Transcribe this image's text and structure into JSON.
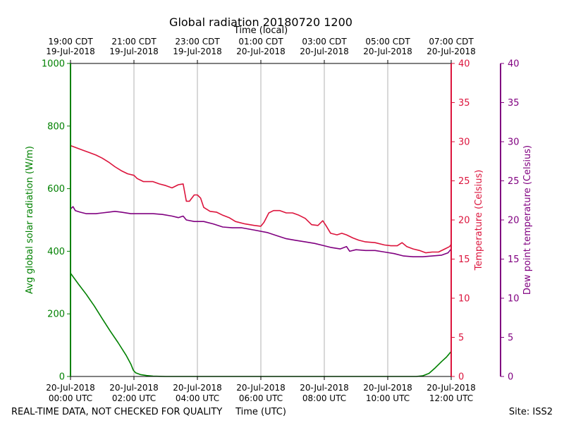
{
  "chart_data": {
    "type": "line",
    "title": "Global radiation 20180720 1200",
    "top_xlabel": "Time (local)",
    "xlabel": "Time (UTC)",
    "footer_left": "REAL-TIME DATA, NOT CHECKED FOR QUALITY",
    "footer_right": "Site: ISS2",
    "x_hours_range": [
      0,
      12
    ],
    "bottom_ticks": [
      {
        "hour": 0,
        "line1": "20-Jul-2018",
        "line2": "00:00 UTC"
      },
      {
        "hour": 2,
        "line1": "20-Jul-2018",
        "line2": "02:00 UTC"
      },
      {
        "hour": 4,
        "line1": "20-Jul-2018",
        "line2": "04:00 UTC"
      },
      {
        "hour": 6,
        "line1": "20-Jul-2018",
        "line2": "06:00 UTC"
      },
      {
        "hour": 8,
        "line1": "20-Jul-2018",
        "line2": "08:00 UTC"
      },
      {
        "hour": 10,
        "line1": "20-Jul-2018",
        "line2": "10:00 UTC"
      },
      {
        "hour": 12,
        "line1": "20-Jul-2018",
        "line2": "12:00 UTC"
      }
    ],
    "top_ticks": [
      {
        "hour": 0,
        "line1": "19:00 CDT",
        "line2": "19-Jul-2018"
      },
      {
        "hour": 2,
        "line1": "21:00 CDT",
        "line2": "19-Jul-2018"
      },
      {
        "hour": 4,
        "line1": "23:00 CDT",
        "line2": "19-Jul-2018"
      },
      {
        "hour": 6,
        "line1": "01:00 CDT",
        "line2": "20-Jul-2018"
      },
      {
        "hour": 8,
        "line1": "03:00 CDT",
        "line2": "20-Jul-2018"
      },
      {
        "hour": 10,
        "line1": "05:00 CDT",
        "line2": "20-Jul-2018"
      },
      {
        "hour": 12,
        "line1": "07:00 CDT",
        "line2": "20-Jul-2018"
      }
    ],
    "grid": "vertical",
    "axes": {
      "left": {
        "label": "Avg global solar radiation (W/m)",
        "range": [
          0,
          1000
        ],
        "ticks": [
          0,
          200,
          400,
          600,
          800,
          1000
        ],
        "color": "#008000"
      },
      "right1": {
        "label": "Temperature (Celsius)",
        "range": [
          0,
          40
        ],
        "ticks": [
          0,
          5,
          10,
          15,
          20,
          25,
          30,
          35,
          40
        ],
        "color": "#dc143c"
      },
      "right2": {
        "label": "Dew point temperature (Celsius)",
        "range": [
          0,
          40
        ],
        "ticks": [
          0,
          5,
          10,
          15,
          20,
          25,
          30,
          35,
          40
        ],
        "color": "#800080"
      }
    },
    "series": [
      {
        "axis": "left",
        "color": "#008000",
        "points": [
          [
            0,
            330
          ],
          [
            0.25,
            295
          ],
          [
            0.5,
            262
          ],
          [
            0.75,
            225
          ],
          [
            1.0,
            185
          ],
          [
            1.25,
            145
          ],
          [
            1.5,
            108
          ],
          [
            1.75,
            68
          ],
          [
            1.9,
            40
          ],
          [
            1.98,
            20
          ],
          [
            2.05,
            12
          ],
          [
            2.2,
            6
          ],
          [
            2.4,
            3
          ],
          [
            2.6,
            1
          ],
          [
            3.0,
            0
          ],
          [
            4,
            0
          ],
          [
            5,
            0
          ],
          [
            6,
            0
          ],
          [
            7,
            0
          ],
          [
            8,
            0
          ],
          [
            9,
            0
          ],
          [
            10,
            0
          ],
          [
            10.9,
            0
          ],
          [
            11.1,
            2
          ],
          [
            11.3,
            10
          ],
          [
            11.5,
            28
          ],
          [
            11.7,
            48
          ],
          [
            11.85,
            62
          ],
          [
            12,
            80
          ]
        ]
      },
      {
        "axis": "right1",
        "color": "#dc143c",
        "points": [
          [
            0,
            29.5
          ],
          [
            0.2,
            29.2
          ],
          [
            0.4,
            28.9
          ],
          [
            0.6,
            28.6
          ],
          [
            0.8,
            28.3
          ],
          [
            1.0,
            27.9
          ],
          [
            1.2,
            27.4
          ],
          [
            1.4,
            26.8
          ],
          [
            1.6,
            26.3
          ],
          [
            1.8,
            25.9
          ],
          [
            2.0,
            25.7
          ],
          [
            2.1,
            25.3
          ],
          [
            2.3,
            24.9
          ],
          [
            2.6,
            24.9
          ],
          [
            2.8,
            24.6
          ],
          [
            3.0,
            24.4
          ],
          [
            3.2,
            24.1
          ],
          [
            3.4,
            24.5
          ],
          [
            3.55,
            24.6
          ],
          [
            3.65,
            22.4
          ],
          [
            3.75,
            22.4
          ],
          [
            3.9,
            23.2
          ],
          [
            4.0,
            23.2
          ],
          [
            4.1,
            22.8
          ],
          [
            4.2,
            21.6
          ],
          [
            4.4,
            21.1
          ],
          [
            4.6,
            21.0
          ],
          [
            4.8,
            20.6
          ],
          [
            5.0,
            20.3
          ],
          [
            5.2,
            19.8
          ],
          [
            5.5,
            19.5
          ],
          [
            5.8,
            19.3
          ],
          [
            6.0,
            19.2
          ],
          [
            6.1,
            19.7
          ],
          [
            6.25,
            20.9
          ],
          [
            6.4,
            21.2
          ],
          [
            6.6,
            21.2
          ],
          [
            6.8,
            20.9
          ],
          [
            7.0,
            20.9
          ],
          [
            7.2,
            20.6
          ],
          [
            7.4,
            20.2
          ],
          [
            7.6,
            19.4
          ],
          [
            7.8,
            19.3
          ],
          [
            7.95,
            19.9
          ],
          [
            8.05,
            19.3
          ],
          [
            8.2,
            18.3
          ],
          [
            8.4,
            18.1
          ],
          [
            8.55,
            18.3
          ],
          [
            8.7,
            18.1
          ],
          [
            8.9,
            17.7
          ],
          [
            9.1,
            17.4
          ],
          [
            9.3,
            17.2
          ],
          [
            9.6,
            17.1
          ],
          [
            9.9,
            16.8
          ],
          [
            10.1,
            16.7
          ],
          [
            10.3,
            16.7
          ],
          [
            10.45,
            17.1
          ],
          [
            10.6,
            16.6
          ],
          [
            10.8,
            16.3
          ],
          [
            11.0,
            16.1
          ],
          [
            11.2,
            15.8
          ],
          [
            11.4,
            15.9
          ],
          [
            11.6,
            15.9
          ],
          [
            11.8,
            16.3
          ],
          [
            11.95,
            16.6
          ],
          [
            12.0,
            16.9
          ]
        ]
      },
      {
        "axis": "right2",
        "color": "#800080",
        "points": [
          [
            0,
            21.4
          ],
          [
            0.08,
            21.7
          ],
          [
            0.15,
            21.2
          ],
          [
            0.3,
            21.0
          ],
          [
            0.5,
            20.8
          ],
          [
            0.8,
            20.8
          ],
          [
            1.0,
            20.9
          ],
          [
            1.2,
            21.0
          ],
          [
            1.4,
            21.1
          ],
          [
            1.6,
            21.0
          ],
          [
            1.9,
            20.8
          ],
          [
            2.2,
            20.8
          ],
          [
            2.6,
            20.8
          ],
          [
            2.9,
            20.7
          ],
          [
            3.2,
            20.5
          ],
          [
            3.4,
            20.3
          ],
          [
            3.55,
            20.5
          ],
          [
            3.65,
            20.0
          ],
          [
            3.9,
            19.8
          ],
          [
            4.2,
            19.8
          ],
          [
            4.5,
            19.5
          ],
          [
            4.8,
            19.1
          ],
          [
            5.1,
            19.0
          ],
          [
            5.4,
            19.0
          ],
          [
            5.8,
            18.7
          ],
          [
            6.2,
            18.4
          ],
          [
            6.5,
            18.0
          ],
          [
            6.8,
            17.6
          ],
          [
            7.1,
            17.4
          ],
          [
            7.4,
            17.2
          ],
          [
            7.7,
            17.0
          ],
          [
            8.0,
            16.7
          ],
          [
            8.2,
            16.5
          ],
          [
            8.5,
            16.3
          ],
          [
            8.7,
            16.6
          ],
          [
            8.8,
            16.0
          ],
          [
            9.0,
            16.2
          ],
          [
            9.3,
            16.1
          ],
          [
            9.6,
            16.1
          ],
          [
            9.9,
            15.9
          ],
          [
            10.2,
            15.7
          ],
          [
            10.5,
            15.4
          ],
          [
            10.8,
            15.3
          ],
          [
            11.1,
            15.3
          ],
          [
            11.4,
            15.4
          ],
          [
            11.7,
            15.5
          ],
          [
            11.9,
            15.8
          ],
          [
            12.0,
            16.3
          ]
        ]
      }
    ]
  }
}
